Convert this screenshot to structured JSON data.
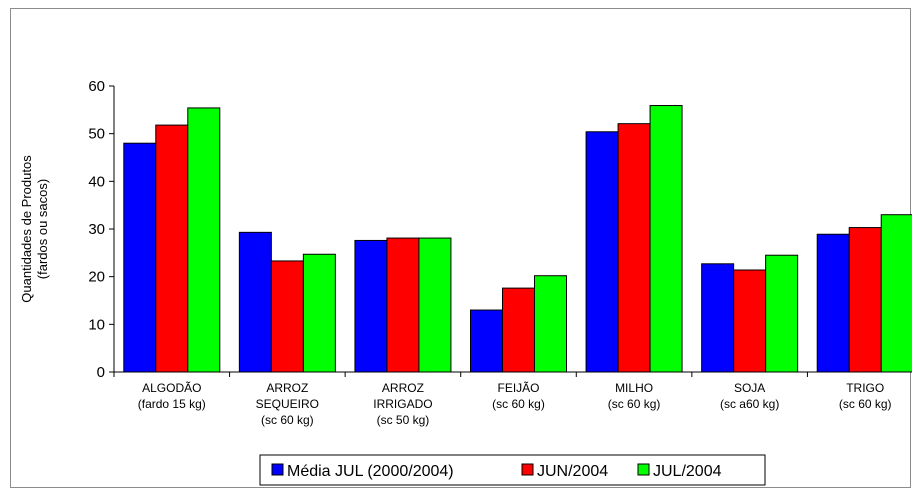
{
  "chart_data": {
    "type": "bar",
    "title": "",
    "xlabel": "",
    "ylabel_lines": [
      "Quantidades de Produtos",
      "(fardos ou sacos)"
    ],
    "ylim": [
      0,
      60
    ],
    "yticks": [
      0,
      10,
      20,
      30,
      40,
      50,
      60
    ],
    "grid": false,
    "legend_position": "bottom",
    "categories": [
      [
        "ALGODÃO",
        "(fardo 15 kg)"
      ],
      [
        "ARROZ",
        "SEQUEIRO",
        "(sc 60 kg)"
      ],
      [
        "ARROZ",
        "IRRIGADO",
        "(sc 50 kg)"
      ],
      [
        "FEIJÃO",
        "(sc 60 kg)"
      ],
      [
        "MILHO",
        "(sc 60 kg)"
      ],
      [
        "SOJA",
        "(sc a60 kg)"
      ],
      [
        "TRIGO",
        "(sc 60 kg)"
      ]
    ],
    "series": [
      {
        "name": "Média JUL (2000/2004)",
        "color": "#0000ff",
        "values": [
          48.0,
          29.3,
          27.6,
          13.0,
          50.4,
          22.7,
          28.9
        ]
      },
      {
        "name": "JUN/2004",
        "color": "#ff0000",
        "values": [
          51.8,
          23.3,
          28.1,
          17.6,
          52.1,
          21.4,
          30.3
        ]
      },
      {
        "name": "JUL/2004",
        "color": "#00ff00",
        "values": [
          55.4,
          24.7,
          28.1,
          20.2,
          55.9,
          24.5,
          33.0
        ]
      }
    ]
  }
}
